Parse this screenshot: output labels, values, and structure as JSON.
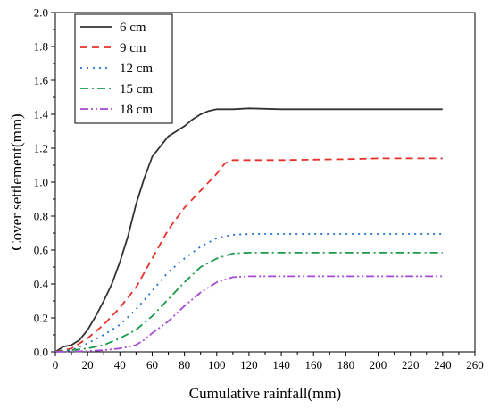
{
  "chart_data": {
    "type": "line",
    "title": "",
    "xlabel": "Cumulative rainfall(mm)",
    "ylabel": "Cover settlement(mm)",
    "xlim": [
      0,
      260
    ],
    "ylim": [
      0,
      2.0
    ],
    "xticks": [
      0,
      20,
      40,
      60,
      80,
      100,
      120,
      140,
      160,
      180,
      200,
      220,
      240,
      260
    ],
    "yticks": [
      0.0,
      0.2,
      0.4,
      0.6,
      0.8,
      1.0,
      1.2,
      1.4,
      1.6,
      1.8,
      2.0
    ],
    "grid": false,
    "legend_position": "top-left",
    "series": [
      {
        "name": "6 cm",
        "color": "#333333",
        "dash": "solid",
        "x": [
          0,
          5,
          10,
          15,
          20,
          25,
          30,
          35,
          40,
          45,
          50,
          55,
          60,
          65,
          70,
          75,
          80,
          85,
          90,
          95,
          100,
          105,
          110,
          120,
          140,
          180,
          240
        ],
        "y": [
          0,
          0.03,
          0.04,
          0.07,
          0.13,
          0.21,
          0.3,
          0.4,
          0.53,
          0.68,
          0.87,
          1.02,
          1.15,
          1.21,
          1.27,
          1.3,
          1.33,
          1.37,
          1.4,
          1.42,
          1.43,
          1.43,
          1.43,
          1.435,
          1.43,
          1.43,
          1.43
        ]
      },
      {
        "name": "9 cm",
        "color": "#e8302a",
        "dash": "dashed",
        "x": [
          0,
          10,
          20,
          30,
          40,
          50,
          60,
          70,
          80,
          90,
          100,
          105,
          110,
          120,
          140,
          180,
          200,
          240
        ],
        "y": [
          0,
          0.02,
          0.08,
          0.16,
          0.26,
          0.38,
          0.55,
          0.72,
          0.85,
          0.95,
          1.05,
          1.11,
          1.13,
          1.13,
          1.13,
          1.135,
          1.14,
          1.14
        ]
      },
      {
        "name": "12 cm",
        "color": "#1f6fd1",
        "dash": "dotted",
        "x": [
          0,
          10,
          20,
          30,
          40,
          50,
          60,
          70,
          80,
          90,
          100,
          110,
          120,
          140,
          240
        ],
        "y": [
          0,
          0.01,
          0.05,
          0.1,
          0.16,
          0.25,
          0.36,
          0.47,
          0.55,
          0.62,
          0.67,
          0.69,
          0.695,
          0.695,
          0.695
        ]
      },
      {
        "name": "15 cm",
        "color": "#1a9a4a",
        "dash": "dashdot",
        "x": [
          0,
          10,
          20,
          30,
          40,
          50,
          60,
          70,
          80,
          90,
          100,
          110,
          120,
          140,
          240
        ],
        "y": [
          0,
          0.01,
          0.02,
          0.04,
          0.08,
          0.13,
          0.21,
          0.31,
          0.41,
          0.5,
          0.55,
          0.58,
          0.585,
          0.585,
          0.585
        ]
      },
      {
        "name": "18 cm",
        "color": "#a64ad6",
        "dash": "dashdotdot",
        "x": [
          0,
          10,
          20,
          30,
          40,
          50,
          55,
          60,
          70,
          80,
          90,
          100,
          110,
          120,
          140,
          240
        ],
        "y": [
          0,
          0.002,
          0.005,
          0.01,
          0.02,
          0.04,
          0.07,
          0.11,
          0.18,
          0.27,
          0.35,
          0.41,
          0.44,
          0.445,
          0.445,
          0.445
        ]
      }
    ]
  }
}
